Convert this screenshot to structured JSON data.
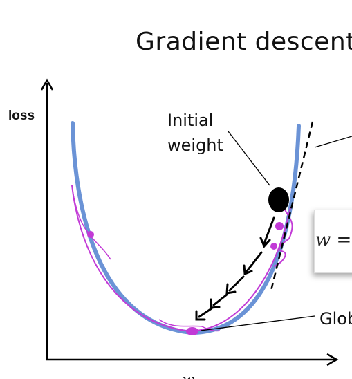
{
  "title": "Gradient descent alg",
  "labels": {
    "loss": "loss",
    "initial_weight_line1": "Initial",
    "initial_weight_line2": "weight",
    "global": "Glob",
    "x_axis": "w"
  },
  "equation": "w =",
  "colors": {
    "curve": "#6b93d6",
    "annotation": "#c23ad6",
    "point": "#000000",
    "arrow": "#000000"
  }
}
